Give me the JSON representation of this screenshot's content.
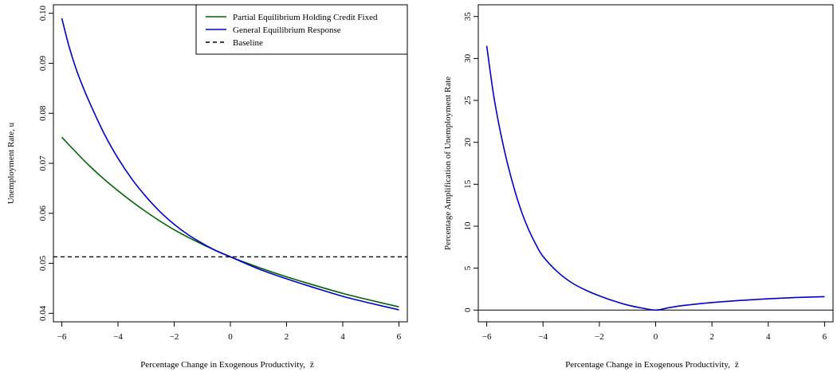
{
  "chart_data": [
    {
      "type": "line",
      "xlabel": "Percentage Change in Exogenous Productivity,",
      "xlabel_symbol": "z̄",
      "ylabel": "Unemployment Rate, u",
      "xlim": [
        -6.3,
        6.3
      ],
      "ylim": [
        0.0383,
        0.1017
      ],
      "xticks": [
        -6,
        -4,
        -2,
        0,
        2,
        4,
        6
      ],
      "xtick_labels": [
        "−6",
        "−4",
        "−2",
        "0",
        "2",
        "4",
        "6"
      ],
      "yticks": [
        0.04,
        0.05,
        0.06,
        0.07,
        0.08,
        0.09,
        0.1
      ],
      "ytick_labels": [
        "0.04",
        "0.05",
        "0.06",
        "0.07",
        "0.08",
        "0.09",
        "0.10"
      ],
      "legend_position": "top-right",
      "series": [
        {
          "name": "Partial Equilibrium Holding Credit Fixed",
          "color": "#006400",
          "style": "solid",
          "x": [
            -6,
            -5,
            -4,
            -3,
            -2,
            -1,
            0,
            1,
            2,
            3,
            4,
            5,
            6
          ],
          "y": [
            0.0752,
            0.0694,
            0.0645,
            0.0603,
            0.0567,
            0.0538,
            0.0513,
            0.0492,
            0.0473,
            0.0456,
            0.044,
            0.0426,
            0.0413
          ]
        },
        {
          "name": "General Equilibrium Response",
          "color": "#0000cd",
          "style": "solid",
          "x": [
            -6,
            -5.75,
            -5.5,
            -5.25,
            -5,
            -4.5,
            -4,
            -3.5,
            -3,
            -2.5,
            -2,
            -1.5,
            -1,
            -0.5,
            0,
            1,
            2,
            3,
            4,
            5,
            6
          ],
          "y": [
            0.099,
            0.0935,
            0.089,
            0.0853,
            0.082,
            0.076,
            0.071,
            0.0668,
            0.0633,
            0.0603,
            0.0578,
            0.0557,
            0.054,
            0.0525,
            0.0513,
            0.0489,
            0.0469,
            0.0451,
            0.0434,
            0.042,
            0.0407
          ]
        },
        {
          "name": "Baseline",
          "color": "#000000",
          "style": "dashed",
          "x": [
            -6.3,
            6.3
          ],
          "y": [
            0.0513,
            0.0513
          ]
        }
      ]
    },
    {
      "type": "line",
      "xlabel": "Percentage Change in Exogenous Productivity,",
      "xlabel_symbol": "z̄",
      "ylabel": "Percentage Amplification of Unemployment Rate",
      "xlim": [
        -6.3,
        6.3
      ],
      "ylim": [
        -1.4,
        36.4
      ],
      "xticks": [
        -6,
        -4,
        -2,
        0,
        2,
        4,
        6
      ],
      "xtick_labels": [
        "−6",
        "−4",
        "−2",
        "0",
        "2",
        "4",
        "6"
      ],
      "yticks": [
        0,
        5,
        10,
        15,
        20,
        25,
        30,
        35
      ],
      "ytick_labels": [
        "0",
        "5",
        "10",
        "15",
        "20",
        "25",
        "30",
        "35"
      ],
      "hline": 0,
      "series": [
        {
          "color": "#0000cd",
          "style": "solid",
          "x": [
            -6,
            -5.75,
            -5.5,
            -5.25,
            -5,
            -4.75,
            -4.5,
            -4.25,
            -4,
            -3.5,
            -3,
            -2.5,
            -2,
            -1.5,
            -1,
            -0.5,
            0,
            0.5,
            1,
            2,
            3,
            4,
            5,
            6
          ],
          "y": [
            31.5,
            25.5,
            21.0,
            17.3,
            14.2,
            11.6,
            9.5,
            7.8,
            6.4,
            4.6,
            3.3,
            2.4,
            1.7,
            1.1,
            0.6,
            0.25,
            0.0,
            0.3,
            0.55,
            0.9,
            1.15,
            1.35,
            1.5,
            1.6
          ]
        }
      ]
    }
  ]
}
